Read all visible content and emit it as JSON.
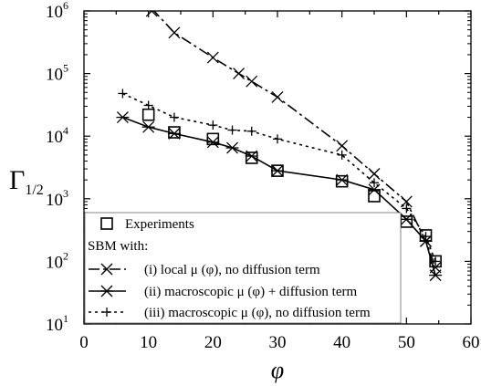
{
  "chart_data": {
    "type": "scatter",
    "title": "",
    "xlabel": "φ",
    "ylabel_main": "Γ",
    "ylabel_sub": "1/2",
    "x_scale": "linear",
    "y_scale": "log",
    "xlim": [
      0,
      60
    ],
    "ylim": [
      10,
      1000000
    ],
    "x_ticks": [
      0,
      10,
      20,
      30,
      40,
      50,
      60
    ],
    "y_ticks": [
      {
        "value": 10,
        "base": "10",
        "exp": "1"
      },
      {
        "value": 100,
        "base": "10",
        "exp": "2"
      },
      {
        "value": 1000,
        "base": "10",
        "exp": "3"
      },
      {
        "value": 10000,
        "base": "10",
        "exp": "4"
      },
      {
        "value": 100000,
        "base": "10",
        "exp": "5"
      },
      {
        "value": 1000000,
        "base": "10",
        "exp": "6"
      }
    ],
    "grid": false,
    "legend_position": "bottom-left",
    "legend_group_heading": "SBM with:",
    "series": [
      {
        "name": "Experiments",
        "marker": "square",
        "line": "none",
        "x": [
          10,
          14,
          20,
          26,
          30,
          40,
          45,
          50,
          53,
          54.5
        ],
        "y": [
          22000,
          11500,
          9000,
          4500,
          2800,
          1900,
          1100,
          430,
          260,
          100
        ]
      },
      {
        "name": "(i) local μ (φ), no diffusion term",
        "marker": "x",
        "line": "dashdot",
        "x": [
          10.5,
          14,
          20,
          24,
          26,
          30,
          40,
          45,
          50,
          53,
          54.5
        ],
        "y": [
          1000000,
          450000,
          180000,
          100000,
          75000,
          42000,
          7000,
          2500,
          900,
          210,
          80
        ],
        "line_x": [
          10.5,
          14,
          20,
          24,
          26,
          30,
          40,
          45,
          50,
          53,
          54.5
        ],
        "line_y": [
          1100000,
          450000,
          180000,
          100000,
          75000,
          42000,
          7000,
          2500,
          900,
          210,
          80
        ]
      },
      {
        "name": "(ii) macroscopic μ (φ) + diffusion term",
        "marker": "asterisk",
        "line": "solid",
        "x": [
          6,
          10,
          14,
          20,
          23,
          26,
          30,
          40,
          45,
          50,
          53,
          54.5
        ],
        "y": [
          20000,
          14000,
          11000,
          8000,
          6500,
          4800,
          2800,
          2000,
          1400,
          470,
          210,
          60
        ]
      },
      {
        "name": "(iii) macroscopic μ (φ), no diffusion term",
        "marker": "plus",
        "line": "dotted",
        "x": [
          6,
          10,
          14,
          20,
          23,
          26,
          30,
          40,
          45,
          50,
          53,
          54.5
        ],
        "y": [
          48000,
          31000,
          20000,
          15000,
          12500,
          12000,
          9000,
          5000,
          1800,
          700,
          250,
          100
        ]
      }
    ]
  }
}
